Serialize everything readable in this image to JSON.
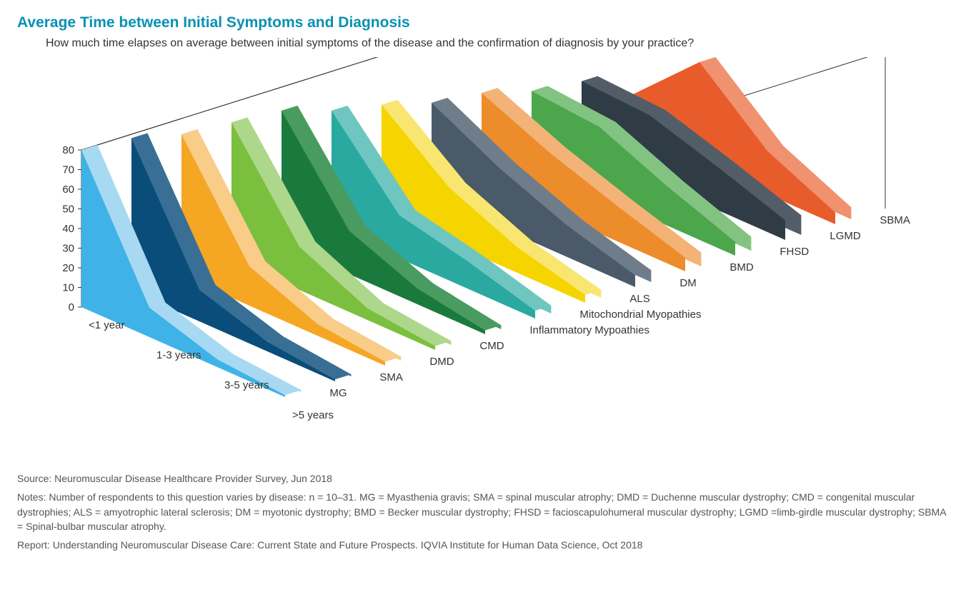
{
  "title": "Average Time between Initial Symptoms and Diagnosis",
  "subtitle": "How much time elapses on average between initial symptoms of the disease and the confirmation of diagnosis by your practice?",
  "chart": {
    "type": "3d-area-ribbon",
    "x_categories": [
      "<1 year",
      "1-3 years",
      "3-5 years",
      ">5 years"
    ],
    "y_ticks": [
      0,
      10,
      20,
      30,
      40,
      50,
      60,
      70,
      80
    ],
    "y_max": 80,
    "series": [
      {
        "name": "MG",
        "color": "#3fb3e8",
        "shade": "#a8d9f2",
        "values": [
          80,
          15,
          4,
          1
        ]
      },
      {
        "name": "SMA",
        "color": "#0a4d7a",
        "shade": "#3a6f95",
        "values": [
          78,
          16,
          5,
          1
        ]
      },
      {
        "name": "DMD",
        "color": "#f5a623",
        "shade": "#f9cc88",
        "values": [
          72,
          20,
          6,
          2
        ]
      },
      {
        "name": "CMD",
        "color": "#7bbf3e",
        "shade": "#add78a",
        "values": [
          70,
          22,
          6,
          2
        ]
      },
      {
        "name": "Inflammatory Mypoathies",
        "color": "#1a7a3e",
        "shade": "#4a9b5f",
        "values": [
          68,
          22,
          8,
          2
        ]
      },
      {
        "name": "Mitochondrial Myopathies",
        "color": "#2aa9a0",
        "shade": "#6fc6c0",
        "values": [
          60,
          22,
          14,
          4
        ]
      },
      {
        "name": "ALS",
        "color": "#f5d400",
        "shade": "#f8e670",
        "values": [
          55,
          28,
          13,
          4
        ]
      },
      {
        "name": "DM",
        "color": "#4a5a68",
        "shade": "#6f7d8a",
        "values": [
          48,
          30,
          16,
          6
        ]
      },
      {
        "name": "BMD",
        "color": "#ed8c2b",
        "shade": "#f3b376",
        "values": [
          45,
          30,
          18,
          7
        ]
      },
      {
        "name": "FHSD",
        "color": "#4ca64c",
        "shade": "#82c382",
        "values": [
          38,
          35,
          20,
          7
        ]
      },
      {
        "name": "LGMD",
        "color": "#2f3b45",
        "shade": "#525d68",
        "values": [
          35,
          33,
          22,
          10
        ]
      },
      {
        "name": "SBMA",
        "color": "#e85c2b",
        "shade": "#f09170",
        "values": [
          20,
          52,
          22,
          6
        ]
      }
    ],
    "axis_color": "#333333",
    "label_color": "#333333",
    "label_fontsize": 15,
    "tick_fontsize": 15,
    "ribbon_depth": 18
  },
  "source": "Source: Neuromuscular Disease Healthcare Provider Survey, Jun 2018",
  "notes": "Notes: Number of respondents to this question varies by disease: n = 10–31. MG = Myasthenia gravis; SMA = spinal muscular atrophy; DMD = Duchenne muscular dystrophy; CMD = congenital muscular dystrophies; ALS = amyotrophic lateral sclerosis; DM = myotonic dystrophy; BMD = Becker muscular dystrophy; FHSD = facioscapulohumeral muscular dystrophy; LGMD =limb-girdle muscular dystrophy; SBMA = Spinal-bulbar muscular atrophy.",
  "report": "Report: Understanding Neuromuscular Disease Care: Current State and Future Prospects. IQVIA Institute for Human Data Science, Oct 2018"
}
